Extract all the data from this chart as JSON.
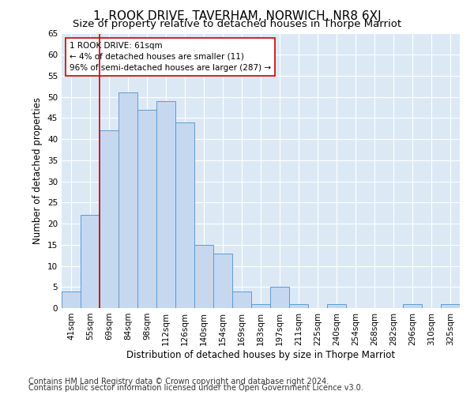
{
  "title": "1, ROOK DRIVE, TAVERHAM, NORWICH, NR8 6XJ",
  "subtitle": "Size of property relative to detached houses in Thorpe Marriot",
  "xlabel": "Distribution of detached houses by size in Thorpe Marriot",
  "ylabel": "Number of detached properties",
  "footnote1": "Contains HM Land Registry data © Crown copyright and database right 2024.",
  "footnote2": "Contains public sector information licensed under the Open Government Licence v3.0.",
  "bar_labels": [
    "41sqm",
    "55sqm",
    "69sqm",
    "84sqm",
    "98sqm",
    "112sqm",
    "126sqm",
    "140sqm",
    "154sqm",
    "169sqm",
    "183sqm",
    "197sqm",
    "211sqm",
    "225sqm",
    "240sqm",
    "254sqm",
    "268sqm",
    "282sqm",
    "296sqm",
    "310sqm",
    "325sqm"
  ],
  "bar_values": [
    4,
    22,
    42,
    51,
    47,
    49,
    44,
    15,
    13,
    4,
    1,
    5,
    1,
    0,
    1,
    0,
    0,
    0,
    1,
    0,
    1
  ],
  "bar_color": "#c5d8f0",
  "bar_edge_color": "#5b9bd5",
  "annotation_line1": "1 ROOK DRIVE: 61sqm",
  "annotation_line2": "← 4% of detached houses are smaller (11)",
  "annotation_line3": "96% of semi-detached houses are larger (287) →",
  "vline_x": 1.5,
  "vline_color": "#cc0000",
  "ylim": [
    0,
    65
  ],
  "yticks": [
    0,
    5,
    10,
    15,
    20,
    25,
    30,
    35,
    40,
    45,
    50,
    55,
    60,
    65
  ],
  "bg_color": "#dce9f5",
  "title_fontsize": 11,
  "subtitle_fontsize": 9.5,
  "axis_label_fontsize": 8.5,
  "tick_fontsize": 7.5,
  "footnote_fontsize": 7
}
